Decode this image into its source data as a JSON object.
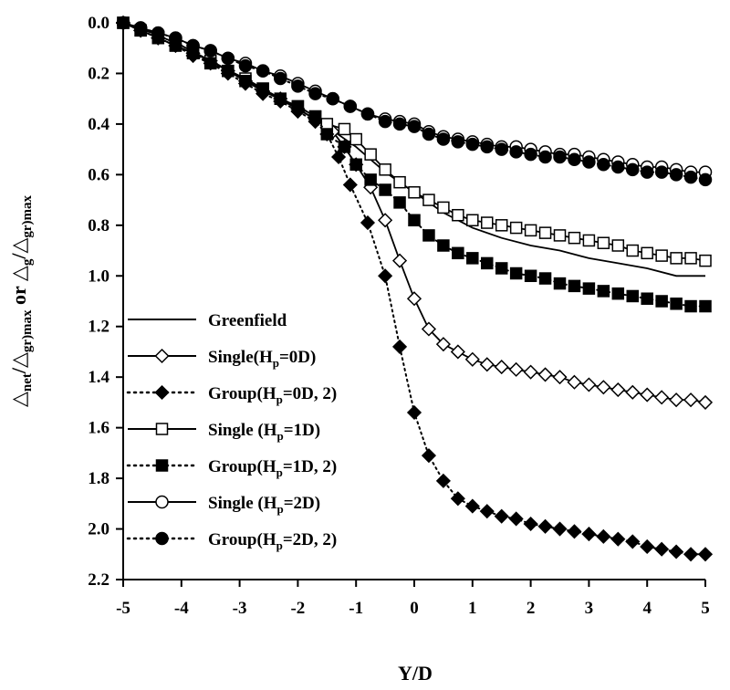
{
  "chart_data": {
    "type": "line",
    "xlabel": "Y/D",
    "ylabel": {
      "parts": [
        "△",
        "net",
        "/△",
        "gr)max",
        " or ",
        "△",
        "g",
        "/△",
        "gr)max"
      ]
    },
    "xlim": [
      -5,
      5
    ],
    "ylim": [
      0.0,
      2.2
    ],
    "y_inverted": true,
    "grid": false,
    "legend_position": "left",
    "xticks": [
      "-5",
      "-4",
      "-3",
      "-2",
      "-1",
      "0",
      "1",
      "2",
      "3",
      "4",
      "5"
    ],
    "yticks": [
      "0.0",
      "0.2",
      "0.4",
      "0.6",
      "0.8",
      "1.0",
      "1.2",
      "1.4",
      "1.6",
      "1.8",
      "2.0",
      "2.2"
    ],
    "series": [
      {
        "name": "Greenfield",
        "line": "solid",
        "marker": "none",
        "points": [
          [
            -5,
            0.0
          ],
          [
            -4.5,
            0.04
          ],
          [
            -4,
            0.09
          ],
          [
            -3.5,
            0.15
          ],
          [
            -3,
            0.21
          ],
          [
            -2.5,
            0.28
          ],
          [
            -2,
            0.34
          ],
          [
            -1.5,
            0.41
          ],
          [
            -1,
            0.49
          ],
          [
            -0.5,
            0.59
          ],
          [
            0,
            0.67
          ],
          [
            0.5,
            0.75
          ],
          [
            1,
            0.81
          ],
          [
            1.5,
            0.85
          ],
          [
            2,
            0.88
          ],
          [
            2.5,
            0.9
          ],
          [
            3,
            0.93
          ],
          [
            3.5,
            0.95
          ],
          [
            4,
            0.97
          ],
          [
            4.5,
            1.0
          ],
          [
            5,
            1.0
          ]
        ]
      },
      {
        "name": "Single(Hp=0D)",
        "name_parts": [
          "Single(H",
          "p",
          "=0D)"
        ],
        "line": "solid",
        "marker": "diamond-open",
        "points": [
          [
            -5,
            0.0
          ],
          [
            -4.7,
            0.03
          ],
          [
            -4.4,
            0.06
          ],
          [
            -4.1,
            0.09
          ],
          [
            -3.8,
            0.12
          ],
          [
            -3.5,
            0.15
          ],
          [
            -3.2,
            0.19
          ],
          [
            -2.9,
            0.23
          ],
          [
            -2.6,
            0.27
          ],
          [
            -2.3,
            0.3
          ],
          [
            -2.0,
            0.34
          ],
          [
            -1.7,
            0.38
          ],
          [
            -1.4,
            0.43
          ],
          [
            -1.2,
            0.49
          ],
          [
            -1.0,
            0.56
          ],
          [
            -0.75,
            0.65
          ],
          [
            -0.5,
            0.78
          ],
          [
            -0.25,
            0.94
          ],
          [
            0,
            1.09
          ],
          [
            0.25,
            1.21
          ],
          [
            0.5,
            1.27
          ],
          [
            0.75,
            1.3
          ],
          [
            1,
            1.33
          ],
          [
            1.25,
            1.35
          ],
          [
            1.5,
            1.36
          ],
          [
            1.75,
            1.37
          ],
          [
            2,
            1.38
          ],
          [
            2.25,
            1.39
          ],
          [
            2.5,
            1.4
          ],
          [
            2.75,
            1.42
          ],
          [
            3,
            1.43
          ],
          [
            3.25,
            1.44
          ],
          [
            3.5,
            1.45
          ],
          [
            3.75,
            1.46
          ],
          [
            4,
            1.47
          ],
          [
            4.25,
            1.48
          ],
          [
            4.5,
            1.49
          ],
          [
            4.75,
            1.49
          ],
          [
            5,
            1.5
          ]
        ]
      },
      {
        "name": "Group(Hp=0D, 2)",
        "name_parts": [
          "Group(H",
          "p",
          "=0D, 2)"
        ],
        "line": "dotted",
        "marker": "diamond-filled",
        "points": [
          [
            -5,
            0.0
          ],
          [
            -4.7,
            0.03
          ],
          [
            -4.4,
            0.06
          ],
          [
            -4.1,
            0.09
          ],
          [
            -3.8,
            0.13
          ],
          [
            -3.5,
            0.16
          ],
          [
            -3.2,
            0.2
          ],
          [
            -2.9,
            0.24
          ],
          [
            -2.6,
            0.28
          ],
          [
            -2.3,
            0.31
          ],
          [
            -2.0,
            0.35
          ],
          [
            -1.7,
            0.39
          ],
          [
            -1.5,
            0.44
          ],
          [
            -1.3,
            0.53
          ],
          [
            -1.1,
            0.64
          ],
          [
            -0.8,
            0.79
          ],
          [
            -0.5,
            1.0
          ],
          [
            -0.25,
            1.28
          ],
          [
            0,
            1.54
          ],
          [
            0.25,
            1.71
          ],
          [
            0.5,
            1.81
          ],
          [
            0.75,
            1.88
          ],
          [
            1,
            1.91
          ],
          [
            1.25,
            1.93
          ],
          [
            1.5,
            1.95
          ],
          [
            1.75,
            1.96
          ],
          [
            2,
            1.98
          ],
          [
            2.25,
            1.99
          ],
          [
            2.5,
            2.0
          ],
          [
            2.75,
            2.01
          ],
          [
            3,
            2.02
          ],
          [
            3.25,
            2.03
          ],
          [
            3.5,
            2.04
          ],
          [
            3.75,
            2.05
          ],
          [
            4,
            2.07
          ],
          [
            4.25,
            2.08
          ],
          [
            4.5,
            2.09
          ],
          [
            4.75,
            2.1
          ],
          [
            5,
            2.1
          ]
        ]
      },
      {
        "name": "Single (Hp=1D)",
        "name_parts": [
          "Single (H",
          "p",
          "=1D)"
        ],
        "line": "solid",
        "marker": "square-open",
        "points": [
          [
            -5,
            0.0
          ],
          [
            -4.7,
            0.03
          ],
          [
            -4.4,
            0.06
          ],
          [
            -4.1,
            0.09
          ],
          [
            -3.8,
            0.12
          ],
          [
            -3.5,
            0.15
          ],
          [
            -3.2,
            0.19
          ],
          [
            -2.9,
            0.22
          ],
          [
            -2.6,
            0.26
          ],
          [
            -2.3,
            0.3
          ],
          [
            -2.0,
            0.33
          ],
          [
            -1.7,
            0.37
          ],
          [
            -1.5,
            0.4
          ],
          [
            -1.2,
            0.42
          ],
          [
            -1.0,
            0.46
          ],
          [
            -0.75,
            0.52
          ],
          [
            -0.5,
            0.58
          ],
          [
            -0.25,
            0.63
          ],
          [
            0,
            0.67
          ],
          [
            0.25,
            0.7
          ],
          [
            0.5,
            0.73
          ],
          [
            0.75,
            0.76
          ],
          [
            1,
            0.78
          ],
          [
            1.25,
            0.79
          ],
          [
            1.5,
            0.8
          ],
          [
            1.75,
            0.81
          ],
          [
            2,
            0.82
          ],
          [
            2.25,
            0.83
          ],
          [
            2.5,
            0.84
          ],
          [
            2.75,
            0.85
          ],
          [
            3,
            0.86
          ],
          [
            3.25,
            0.87
          ],
          [
            3.5,
            0.88
          ],
          [
            3.75,
            0.9
          ],
          [
            4,
            0.91
          ],
          [
            4.25,
            0.92
          ],
          [
            4.5,
            0.93
          ],
          [
            4.75,
            0.93
          ],
          [
            5,
            0.94
          ]
        ]
      },
      {
        "name": "Group(Hp=1D, 2)",
        "name_parts": [
          "Group(H",
          "p",
          "=1D, 2)"
        ],
        "line": "dotted",
        "marker": "square-filled",
        "points": [
          [
            -5,
            0.0
          ],
          [
            -4.7,
            0.03
          ],
          [
            -4.4,
            0.06
          ],
          [
            -4.1,
            0.09
          ],
          [
            -3.8,
            0.12
          ],
          [
            -3.5,
            0.16
          ],
          [
            -3.2,
            0.19
          ],
          [
            -2.9,
            0.23
          ],
          [
            -2.6,
            0.26
          ],
          [
            -2.3,
            0.3
          ],
          [
            -2.0,
            0.33
          ],
          [
            -1.7,
            0.37
          ],
          [
            -1.5,
            0.44
          ],
          [
            -1.2,
            0.49
          ],
          [
            -1.0,
            0.56
          ],
          [
            -0.75,
            0.62
          ],
          [
            -0.5,
            0.66
          ],
          [
            -0.25,
            0.71
          ],
          [
            0,
            0.78
          ],
          [
            0.25,
            0.84
          ],
          [
            0.5,
            0.88
          ],
          [
            0.75,
            0.91
          ],
          [
            1,
            0.93
          ],
          [
            1.25,
            0.95
          ],
          [
            1.5,
            0.97
          ],
          [
            1.75,
            0.99
          ],
          [
            2,
            1.0
          ],
          [
            2.25,
            1.01
          ],
          [
            2.5,
            1.03
          ],
          [
            2.75,
            1.04
          ],
          [
            3,
            1.05
          ],
          [
            3.25,
            1.06
          ],
          [
            3.5,
            1.07
          ],
          [
            3.75,
            1.08
          ],
          [
            4,
            1.09
          ],
          [
            4.25,
            1.1
          ],
          [
            4.5,
            1.11
          ],
          [
            4.75,
            1.12
          ],
          [
            5,
            1.12
          ]
        ]
      },
      {
        "name": "Single (Hp=2D)",
        "name_parts": [
          "Single (H",
          "p",
          "=2D)"
        ],
        "line": "solid",
        "marker": "circle-open",
        "points": [
          [
            -5,
            0.0
          ],
          [
            -4.7,
            0.02
          ],
          [
            -4.4,
            0.04
          ],
          [
            -4.1,
            0.06
          ],
          [
            -3.8,
            0.09
          ],
          [
            -3.5,
            0.11
          ],
          [
            -3.2,
            0.14
          ],
          [
            -2.9,
            0.16
          ],
          [
            -2.6,
            0.19
          ],
          [
            -2.3,
            0.21
          ],
          [
            -2.0,
            0.24
          ],
          [
            -1.7,
            0.27
          ],
          [
            -1.4,
            0.3
          ],
          [
            -1.1,
            0.33
          ],
          [
            -0.8,
            0.36
          ],
          [
            -0.5,
            0.38
          ],
          [
            -0.25,
            0.39
          ],
          [
            0,
            0.4
          ],
          [
            0.25,
            0.43
          ],
          [
            0.5,
            0.45
          ],
          [
            0.75,
            0.46
          ],
          [
            1,
            0.47
          ],
          [
            1.25,
            0.48
          ],
          [
            1.5,
            0.49
          ],
          [
            1.75,
            0.49
          ],
          [
            2,
            0.5
          ],
          [
            2.25,
            0.51
          ],
          [
            2.5,
            0.52
          ],
          [
            2.75,
            0.52
          ],
          [
            3,
            0.53
          ],
          [
            3.25,
            0.54
          ],
          [
            3.5,
            0.55
          ],
          [
            3.75,
            0.56
          ],
          [
            4,
            0.57
          ],
          [
            4.25,
            0.57
          ],
          [
            4.5,
            0.58
          ],
          [
            4.75,
            0.59
          ],
          [
            5,
            0.59
          ]
        ]
      },
      {
        "name": "Group(Hp=2D, 2)",
        "name_parts": [
          "Group(H",
          "p",
          "=2D, 2)"
        ],
        "line": "dotted",
        "marker": "circle-filled",
        "points": [
          [
            -5,
            0.0
          ],
          [
            -4.7,
            0.02
          ],
          [
            -4.4,
            0.04
          ],
          [
            -4.1,
            0.06
          ],
          [
            -3.8,
            0.09
          ],
          [
            -3.5,
            0.11
          ],
          [
            -3.2,
            0.14
          ],
          [
            -2.9,
            0.17
          ],
          [
            -2.6,
            0.19
          ],
          [
            -2.3,
            0.22
          ],
          [
            -2.0,
            0.25
          ],
          [
            -1.7,
            0.28
          ],
          [
            -1.4,
            0.3
          ],
          [
            -1.1,
            0.33
          ],
          [
            -0.8,
            0.36
          ],
          [
            -0.5,
            0.39
          ],
          [
            -0.25,
            0.4
          ],
          [
            0,
            0.41
          ],
          [
            0.25,
            0.44
          ],
          [
            0.5,
            0.46
          ],
          [
            0.75,
            0.47
          ],
          [
            1,
            0.48
          ],
          [
            1.25,
            0.49
          ],
          [
            1.5,
            0.5
          ],
          [
            1.75,
            0.51
          ],
          [
            2,
            0.52
          ],
          [
            2.25,
            0.53
          ],
          [
            2.5,
            0.53
          ],
          [
            2.75,
            0.54
          ],
          [
            3,
            0.55
          ],
          [
            3.25,
            0.56
          ],
          [
            3.5,
            0.57
          ],
          [
            3.75,
            0.58
          ],
          [
            4,
            0.59
          ],
          [
            4.25,
            0.59
          ],
          [
            4.5,
            0.6
          ],
          [
            4.75,
            0.61
          ],
          [
            5,
            0.62
          ]
        ]
      }
    ]
  }
}
